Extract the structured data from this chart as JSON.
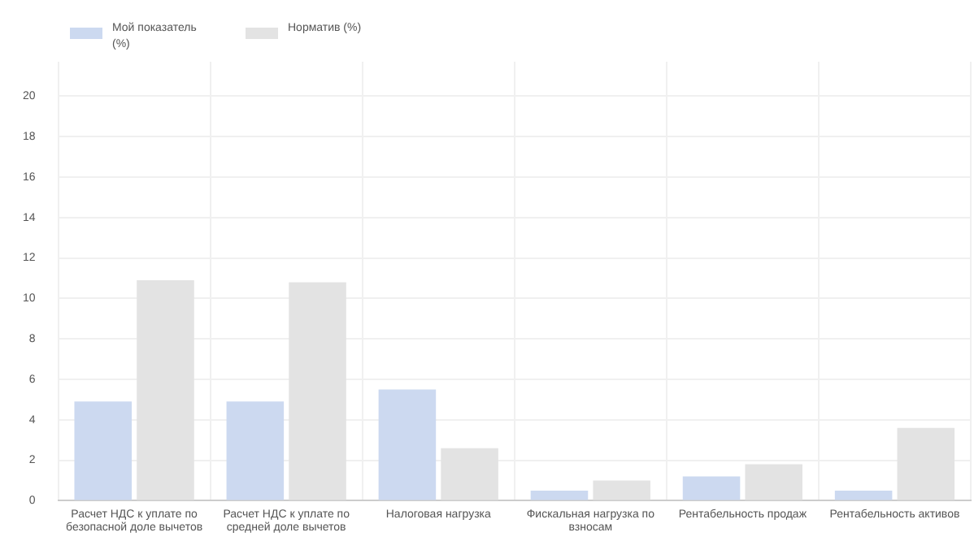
{
  "chart_data": {
    "type": "bar",
    "categories": [
      "Расчет НДС к уплате по безопасной доле вычетов",
      "Расчет НДС к уплате по средней доле вычетов",
      "Налоговая нагрузка",
      "Фискальная нагрузка по взносам",
      "Рентабельность продаж",
      "Рентабельность активов"
    ],
    "series": [
      {
        "name": "Мой показатель (%)",
        "color": "#ccd9f0",
        "values": [
          4.9,
          4.9,
          5.5,
          0.5,
          1.2,
          0.5
        ]
      },
      {
        "name": "Норматив (%)",
        "color": "#e3e3e3",
        "values": [
          10.9,
          10.8,
          2.6,
          1.0,
          1.8,
          3.6
        ]
      }
    ],
    "ylim": [
      0,
      21.7
    ],
    "yticks": [
      0,
      2,
      4,
      6,
      8,
      10,
      12,
      14,
      16,
      18,
      20
    ],
    "grid": true,
    "legend": "top left"
  }
}
